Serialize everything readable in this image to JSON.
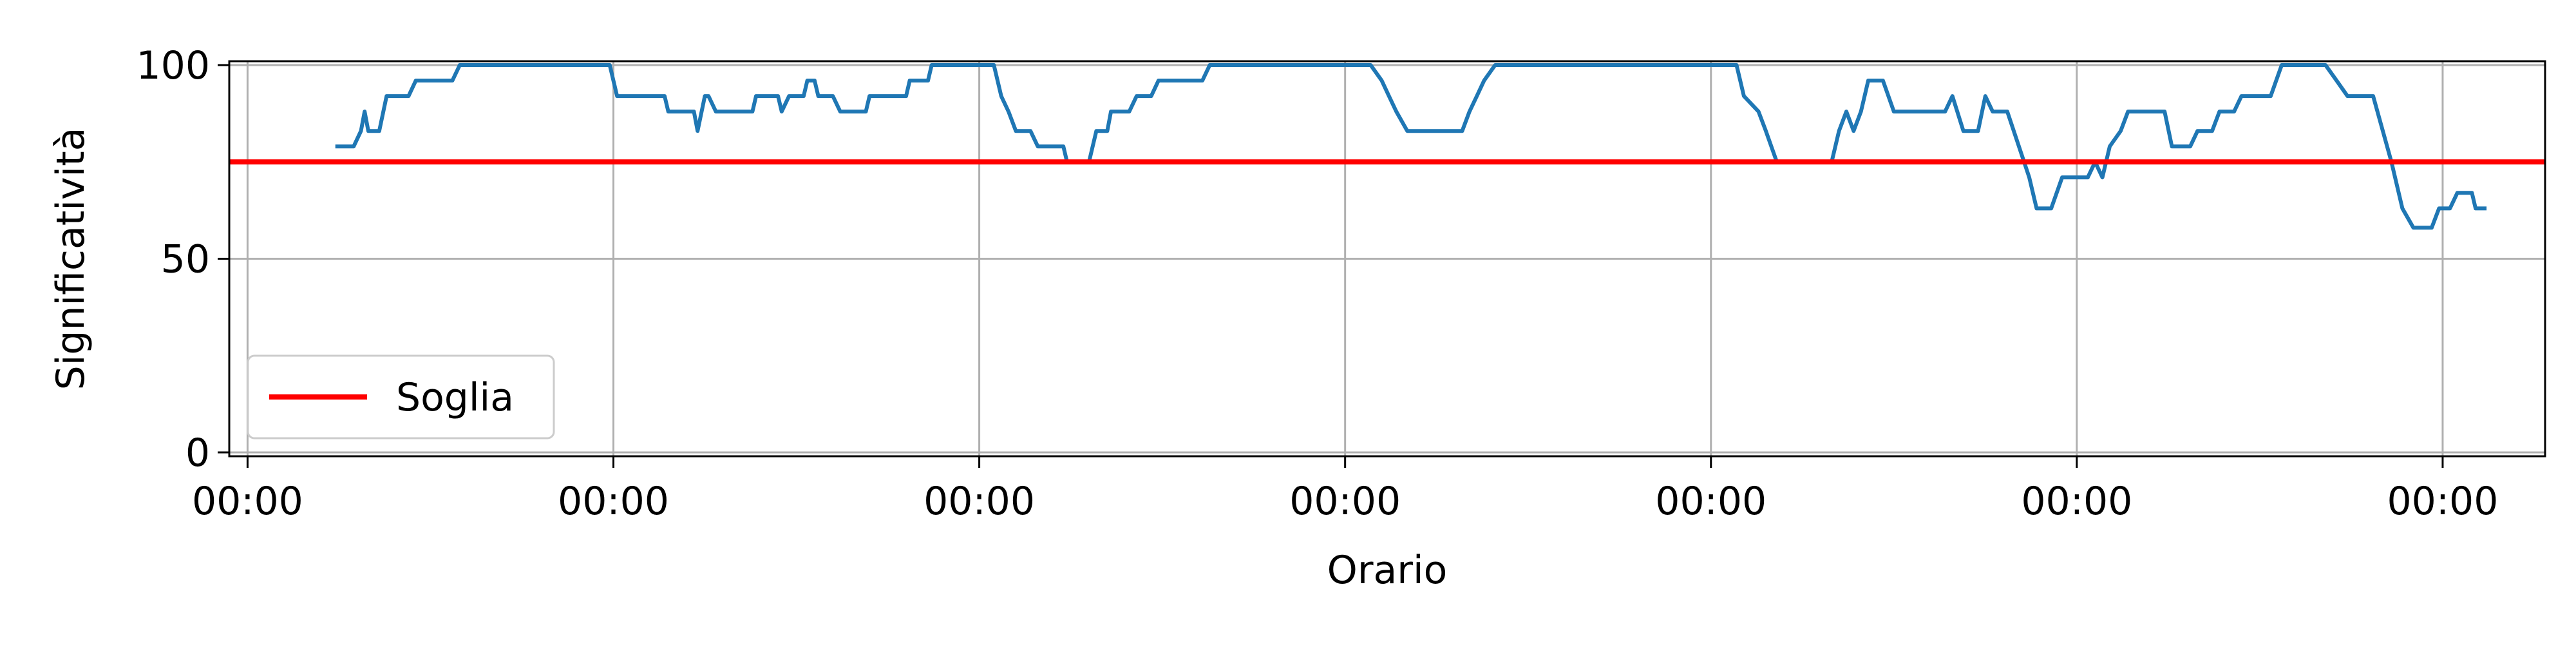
{
  "chart_data": {
    "type": "line",
    "title": "",
    "xlabel": "Orario",
    "ylabel": "Significatività",
    "xlim": [
      -0.05,
      6.28
    ],
    "ylim": [
      -1,
      101
    ],
    "x_ticks": [
      0,
      1,
      2,
      3,
      4,
      5,
      6
    ],
    "x_tick_labels": [
      "00:00",
      "00:00",
      "00:00",
      "00:00",
      "00:00",
      "00:00",
      "00:00"
    ],
    "y_ticks": [
      0,
      50,
      100
    ],
    "y_tick_labels": [
      "0",
      "50",
      "100"
    ],
    "grid": true,
    "legend": {
      "position": "lower-left",
      "entries": [
        "Soglia"
      ]
    },
    "threshold": {
      "name": "Soglia",
      "value": 75,
      "color": "#ff0000"
    },
    "series": [
      {
        "color": "#1f77b4",
        "points": [
          [
            0.24,
            79
          ],
          [
            0.29,
            79
          ],
          [
            0.31,
            83
          ],
          [
            0.32,
            88
          ],
          [
            0.33,
            83
          ],
          [
            0.36,
            83
          ],
          [
            0.38,
            92
          ],
          [
            0.44,
            92
          ],
          [
            0.46,
            96
          ],
          [
            0.56,
            96
          ],
          [
            0.58,
            100
          ],
          [
            0.99,
            100
          ],
          [
            1.01,
            92
          ],
          [
            1.14,
            92
          ],
          [
            1.15,
            88
          ],
          [
            1.22,
            88
          ],
          [
            1.23,
            83
          ],
          [
            1.25,
            92
          ],
          [
            1.26,
            92
          ],
          [
            1.28,
            88
          ],
          [
            1.38,
            88
          ],
          [
            1.39,
            92
          ],
          [
            1.45,
            92
          ],
          [
            1.46,
            88
          ],
          [
            1.48,
            92
          ],
          [
            1.52,
            92
          ],
          [
            1.53,
            96
          ],
          [
            1.55,
            96
          ],
          [
            1.56,
            92
          ],
          [
            1.6,
            92
          ],
          [
            1.62,
            88
          ],
          [
            1.69,
            88
          ],
          [
            1.7,
            92
          ],
          [
            1.8,
            92
          ],
          [
            1.81,
            96
          ],
          [
            1.86,
            96
          ],
          [
            1.87,
            100
          ],
          [
            2.04,
            100
          ],
          [
            2.06,
            92
          ],
          [
            2.08,
            88
          ],
          [
            2.1,
            83
          ],
          [
            2.14,
            83
          ],
          [
            2.16,
            79
          ],
          [
            2.23,
            79
          ],
          [
            2.24,
            75
          ],
          [
            2.3,
            75
          ],
          [
            2.32,
            83
          ],
          [
            2.35,
            83
          ],
          [
            2.36,
            88
          ],
          [
            2.41,
            88
          ],
          [
            2.43,
            92
          ],
          [
            2.47,
            92
          ],
          [
            2.49,
            96
          ],
          [
            2.61,
            96
          ],
          [
            2.63,
            100
          ],
          [
            3.07,
            100
          ],
          [
            3.1,
            96
          ],
          [
            3.12,
            92
          ],
          [
            3.14,
            88
          ],
          [
            3.17,
            83
          ],
          [
            3.32,
            83
          ],
          [
            3.34,
            88
          ],
          [
            3.36,
            92
          ],
          [
            3.38,
            96
          ],
          [
            3.41,
            100
          ],
          [
            4.07,
            100
          ],
          [
            4.09,
            92
          ],
          [
            4.13,
            88
          ],
          [
            4.15,
            83
          ],
          [
            4.18,
            75
          ],
          [
            4.33,
            75
          ],
          [
            4.35,
            83
          ],
          [
            4.37,
            88
          ],
          [
            4.39,
            83
          ],
          [
            4.41,
            88
          ],
          [
            4.43,
            96
          ],
          [
            4.47,
            96
          ],
          [
            4.5,
            88
          ],
          [
            4.64,
            88
          ],
          [
            4.66,
            92
          ],
          [
            4.69,
            83
          ],
          [
            4.73,
            83
          ],
          [
            4.75,
            92
          ],
          [
            4.77,
            88
          ],
          [
            4.81,
            88
          ],
          [
            4.87,
            71
          ],
          [
            4.89,
            63
          ],
          [
            4.93,
            63
          ],
          [
            4.96,
            71
          ],
          [
            5.03,
            71
          ],
          [
            5.05,
            75
          ],
          [
            5.07,
            71
          ],
          [
            5.09,
            79
          ],
          [
            5.12,
            83
          ],
          [
            5.14,
            88
          ],
          [
            5.24,
            88
          ],
          [
            5.26,
            79
          ],
          [
            5.31,
            79
          ],
          [
            5.33,
            83
          ],
          [
            5.37,
            83
          ],
          [
            5.39,
            88
          ],
          [
            5.43,
            88
          ],
          [
            5.45,
            92
          ],
          [
            5.53,
            92
          ],
          [
            5.56,
            100
          ],
          [
            5.68,
            100
          ],
          [
            5.71,
            96
          ],
          [
            5.74,
            92
          ],
          [
            5.81,
            92
          ],
          [
            5.86,
            75
          ],
          [
            5.89,
            63
          ],
          [
            5.92,
            58
          ],
          [
            5.97,
            58
          ],
          [
            5.99,
            63
          ],
          [
            6.02,
            63
          ],
          [
            6.04,
            67
          ],
          [
            6.08,
            67
          ],
          [
            6.09,
            63
          ],
          [
            6.12,
            63
          ]
        ]
      }
    ]
  }
}
